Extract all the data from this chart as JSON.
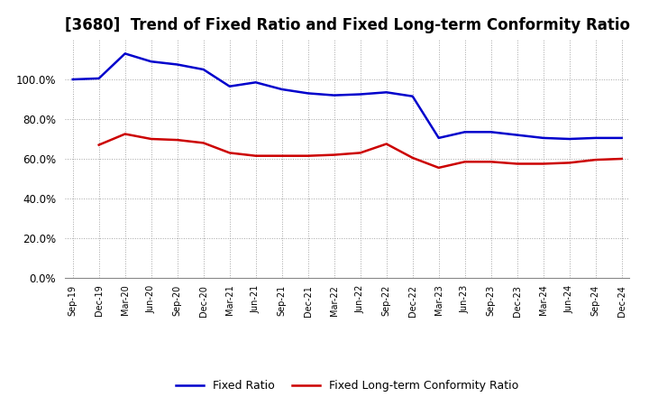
{
  "title": "[3680]  Trend of Fixed Ratio and Fixed Long-term Conformity Ratio",
  "x_labels": [
    "Sep-19",
    "Dec-19",
    "Mar-20",
    "Jun-20",
    "Sep-20",
    "Dec-20",
    "Mar-21",
    "Jun-21",
    "Sep-21",
    "Dec-21",
    "Mar-22",
    "Jun-22",
    "Sep-22",
    "Dec-22",
    "Mar-23",
    "Jun-23",
    "Sep-23",
    "Dec-23",
    "Mar-24",
    "Jun-24",
    "Sep-24",
    "Dec-24"
  ],
  "fixed_ratio": [
    100.0,
    100.5,
    113.0,
    109.0,
    107.5,
    105.0,
    96.5,
    98.5,
    95.0,
    93.0,
    92.0,
    92.5,
    93.5,
    91.5,
    70.5,
    73.5,
    73.5,
    72.0,
    70.5,
    70.0,
    70.5,
    70.5
  ],
  "fixed_lt_ratio": [
    null,
    67.0,
    72.5,
    70.0,
    69.5,
    68.0,
    63.0,
    61.5,
    61.5,
    61.5,
    62.0,
    63.0,
    67.5,
    60.5,
    55.5,
    58.5,
    58.5,
    57.5,
    57.5,
    58.0,
    59.5,
    60.0
  ],
  "fixed_ratio_color": "#0000cc",
  "fixed_lt_ratio_color": "#cc0000",
  "ylim": [
    0,
    120
  ],
  "yticks": [
    0,
    20,
    40,
    60,
    80,
    100
  ],
  "background_color": "#ffffff",
  "grid_color": "#999999",
  "title_fontsize": 12,
  "legend_labels": [
    "Fixed Ratio",
    "Fixed Long-term Conformity Ratio"
  ]
}
